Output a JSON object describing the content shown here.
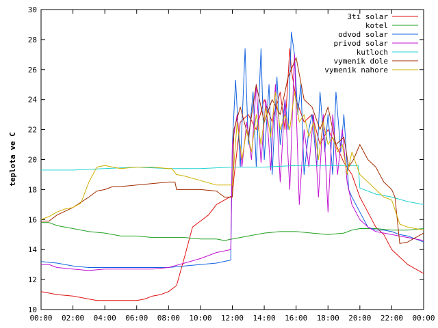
{
  "chart_data": {
    "type": "line",
    "title": "",
    "xlabel": "",
    "ylabel": "teplota ve C",
    "xlim": [
      0,
      24
    ],
    "ylim": [
      10,
      30
    ],
    "x_ticks": [
      "00:00",
      "02:00",
      "04:00",
      "06:00",
      "08:00",
      "10:00",
      "12:00",
      "14:00",
      "16:00",
      "18:00",
      "20:00",
      "22:00",
      "00:00"
    ],
    "y_ticks": [
      10,
      12,
      14,
      16,
      18,
      20,
      22,
      24,
      26,
      28,
      30
    ],
    "legend_position": "top-right",
    "grid": false,
    "series": [
      {
        "name": "3ti solar",
        "color": "#e01010",
        "x": [
          0,
          0.5,
          1,
          2,
          3,
          3.5,
          4,
          5,
          6,
          6.5,
          7,
          7.5,
          8,
          8.5,
          9,
          9.5,
          10,
          10.5,
          11,
          11.5,
          12,
          12.1,
          12.5,
          13,
          13.5,
          14,
          14.5,
          15,
          15.3,
          15.6,
          15.7,
          16,
          16.5,
          17,
          17.5,
          18,
          18.5,
          19,
          19.5,
          20,
          20.5,
          21,
          21.5,
          22,
          22.5,
          23,
          23.5,
          24
        ],
        "y": [
          11.2,
          11.1,
          11.0,
          10.9,
          10.7,
          10.6,
          10.6,
          10.6,
          10.6,
          10.7,
          10.9,
          11.0,
          11.2,
          11.6,
          13.5,
          15.5,
          15.9,
          16.3,
          17.0,
          17.3,
          17.6,
          18.8,
          22.5,
          23.0,
          22.0,
          24.0,
          22.5,
          24.5,
          22.0,
          27.4,
          26.0,
          24.0,
          22.5,
          23.0,
          21.0,
          22.0,
          21.0,
          19.8,
          19.0,
          17.5,
          16.5,
          15.5,
          15.0,
          14.0,
          13.5,
          13.0,
          12.7,
          12.4
        ]
      },
      {
        "name": "kotel",
        "color": "#20a020",
        "x": [
          0,
          0.5,
          1,
          2,
          3,
          4,
          5,
          6,
          7,
          8,
          9,
          10,
          11,
          11.5,
          12,
          13,
          14,
          15,
          16,
          17,
          18,
          19,
          19.5,
          20,
          21,
          22,
          23,
          24
        ],
        "y": [
          15.8,
          15.8,
          15.6,
          15.4,
          15.2,
          15.1,
          14.9,
          14.9,
          14.8,
          14.8,
          14.8,
          14.7,
          14.7,
          14.6,
          14.7,
          14.9,
          15.1,
          15.2,
          15.2,
          15.1,
          15.0,
          15.1,
          15.3,
          15.4,
          15.4,
          15.3,
          15.3,
          15.4
        ]
      },
      {
        "name": "odvod solar",
        "color": "#1060e0",
        "x": [
          0,
          1,
          2,
          3,
          4,
          5,
          6,
          7,
          8,
          9,
          10,
          11,
          11.9,
          12,
          12.2,
          12.5,
          12.8,
          13,
          13.3,
          13.5,
          13.8,
          14,
          14.3,
          14.5,
          14.8,
          15,
          15.3,
          15.5,
          15.7,
          15.9,
          16.1,
          16.3,
          16.5,
          16.8,
          17,
          17.3,
          17.5,
          17.8,
          18,
          18.3,
          18.5,
          18.8,
          19,
          19.3,
          19.5,
          20,
          20.5,
          21,
          21.5,
          22,
          22.5,
          23,
          23.5,
          24
        ],
        "y": [
          13.2,
          13.1,
          12.9,
          12.8,
          12.8,
          12.8,
          12.8,
          12.8,
          12.8,
          12.9,
          13.0,
          13.1,
          13.3,
          21.0,
          25.3,
          19.5,
          27.4,
          21.0,
          24.5,
          19.5,
          27.4,
          20.0,
          25.0,
          19.0,
          25.5,
          21.0,
          24.0,
          22.0,
          28.5,
          27.0,
          23.0,
          25.0,
          19.0,
          22.0,
          23.0,
          19.5,
          24.5,
          20.5,
          23.0,
          19.0,
          24.5,
          20.5,
          23.0,
          18.0,
          17.5,
          16.5,
          15.5,
          15.3,
          15.3,
          15.2,
          15.0,
          14.9,
          14.7,
          14.5
        ]
      },
      {
        "name": "privod solar",
        "color": "#c010d0",
        "x": [
          0,
          0.5,
          1,
          2,
          3,
          4,
          5,
          6,
          7,
          8,
          9,
          10,
          10.5,
          11,
          11.9,
          12,
          12.3,
          12.6,
          12.9,
          13.2,
          13.5,
          13.8,
          14.1,
          14.4,
          14.7,
          15,
          15.3,
          15.6,
          15.9,
          16.2,
          16.5,
          16.8,
          17.1,
          17.4,
          17.7,
          18,
          18.3,
          18.6,
          18.9,
          19.2,
          19.5,
          20,
          20.5,
          21,
          22,
          23,
          24
        ],
        "y": [
          13.0,
          13.0,
          12.8,
          12.7,
          12.6,
          12.7,
          12.7,
          12.7,
          12.7,
          12.8,
          13.1,
          13.4,
          13.6,
          13.8,
          14.0,
          21.0,
          23.0,
          19.5,
          22.5,
          20.0,
          25.0,
          19.8,
          24.0,
          19.3,
          25.0,
          18.5,
          24.0,
          18.0,
          27.0,
          17.0,
          22.0,
          19.5,
          23.0,
          17.5,
          23.0,
          16.5,
          23.0,
          19.0,
          22.0,
          18.5,
          17.0,
          16.0,
          15.5,
          15.2,
          15.0,
          14.8,
          14.6
        ]
      },
      {
        "name": "kutloch",
        "color": "#20d0d0",
        "x": [
          0,
          2,
          4,
          6,
          8,
          10,
          12,
          14,
          16,
          18,
          19.9,
          20,
          21,
          22,
          23,
          24
        ],
        "y": [
          19.3,
          19.3,
          19.4,
          19.5,
          19.4,
          19.4,
          19.5,
          19.5,
          19.6,
          19.6,
          19.6,
          18.1,
          17.7,
          17.5,
          17.2,
          17.0
        ]
      },
      {
        "name": "vymenik dole",
        "color": "#a02c00",
        "x": [
          0,
          0.5,
          1,
          2,
          3,
          3.5,
          4,
          4.5,
          5,
          6,
          7,
          8,
          8.4,
          8.5,
          9,
          10,
          11,
          11.5,
          12,
          12.1,
          12.5,
          13,
          13.5,
          14,
          14.5,
          15,
          15.5,
          16,
          16.5,
          17,
          17.5,
          18,
          18.5,
          19,
          19.3,
          19.6,
          20,
          20.5,
          21,
          21.5,
          22,
          22.2,
          22.5,
          23,
          23.5,
          24
        ],
        "y": [
          15.9,
          15.9,
          16.3,
          16.8,
          17.5,
          17.9,
          18.0,
          18.2,
          18.2,
          18.3,
          18.4,
          18.5,
          18.5,
          18.0,
          18.0,
          18.0,
          17.9,
          17.5,
          17.5,
          22.0,
          23.5,
          21.5,
          25.0,
          22.5,
          24.0,
          23.0,
          25.5,
          26.8,
          24.0,
          23.5,
          22.0,
          23.5,
          21.0,
          21.5,
          19.5,
          20.0,
          21.0,
          20.0,
          19.5,
          18.5,
          18.0,
          17.5,
          14.4,
          14.5,
          14.8,
          15.1
        ]
      },
      {
        "name": "vymenik nahore",
        "color": "#d0b000",
        "x": [
          0,
          0.5,
          1,
          1.5,
          2,
          2.5,
          3,
          3.5,
          4,
          5,
          6,
          7,
          8,
          8.2,
          8.5,
          9,
          10,
          11,
          11.5,
          12,
          12.3,
          12.6,
          12.9,
          13.2,
          13.5,
          13.8,
          14.1,
          14.4,
          14.7,
          15,
          15.3,
          15.6,
          15.9,
          16.2,
          16.5,
          16.8,
          17.1,
          17.4,
          17.7,
          18,
          18.3,
          18.6,
          18.9,
          19.2,
          19.5,
          20,
          20.5,
          21,
          21.5,
          22,
          22.5,
          23,
          23.5,
          24
        ],
        "y": [
          16.0,
          16.2,
          16.5,
          16.7,
          16.8,
          17.1,
          18.5,
          19.5,
          19.6,
          19.4,
          19.5,
          19.5,
          19.4,
          19.4,
          19.0,
          18.9,
          18.6,
          18.3,
          18.3,
          18.3,
          22.5,
          20.0,
          22.0,
          20.5,
          23.0,
          21.0,
          23.5,
          21.5,
          24.5,
          22.0,
          23.0,
          22.0,
          24.5,
          22.5,
          23.0,
          21.5,
          22.5,
          20.0,
          22.5,
          21.0,
          21.5,
          20.5,
          21.0,
          19.0,
          20.5,
          19.0,
          18.5,
          18.0,
          17.5,
          17.3,
          15.7,
          15.5,
          15.4,
          15.3
        ]
      }
    ]
  }
}
